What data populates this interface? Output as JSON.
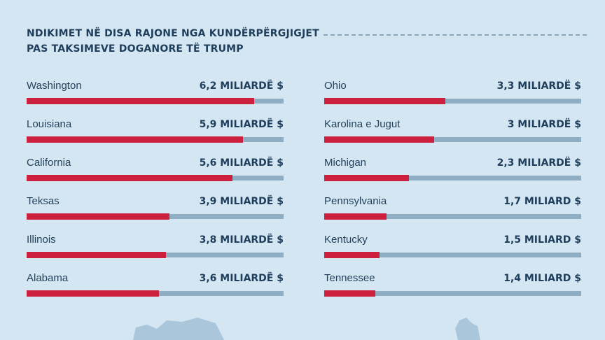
{
  "chart_data": {
    "type": "bar",
    "orientation": "horizontal",
    "title": "NDIKIMET NË DISA RAJONE NGA KUNDËRPËRGJIGJET PAS TAKSIMEVE DOGANORE TË TRUMP",
    "title_lines": [
      "NDIKIMET NË DISA RAJONE NGA KUNDËRPËRGJIGJET",
      "PAS TAKSIMEVE DOGANORE TË TRUMP"
    ],
    "xlim": [
      0,
      7
    ],
    "colors": {
      "fill": "#cd1f3e",
      "track": "#8faec4",
      "background": "#d3e6f2"
    },
    "columns": [
      {
        "rows": [
          {
            "region": "Washington",
            "value": 6.2,
            "label": "6,2 MILIARDË $"
          },
          {
            "region": "Louisiana",
            "value": 5.9,
            "label": "5,9 MILIARDË $"
          },
          {
            "region": "California",
            "value": 5.6,
            "label": "5,6 MILIARDË $"
          },
          {
            "region": "Teksas",
            "value": 3.9,
            "label": "3,9 MILIARDË $"
          },
          {
            "region": "Illinois",
            "value": 3.8,
            "label": "3,8 MILIARDË $"
          },
          {
            "region": "Alabama",
            "value": 3.6,
            "label": "3,6 MILIARDË $"
          }
        ]
      },
      {
        "rows": [
          {
            "region": "Ohio",
            "value": 3.3,
            "label": "3,3 MILIARDË $"
          },
          {
            "region": "Karolina e Jugut",
            "value": 3.0,
            "label": "3 MILIARDË $"
          },
          {
            "region": "Michigan",
            "value": 2.3,
            "label": "2,3 MILIARDË $"
          },
          {
            "region": "Pennsylvania",
            "value": 1.7,
            "label": "1,7 MILIARD $"
          },
          {
            "region": "Kentucky",
            "value": 1.5,
            "label": "1,5 MILIARD $"
          },
          {
            "region": "Tennessee",
            "value": 1.4,
            "label": "1,4 MILIARD $"
          }
        ]
      }
    ]
  }
}
